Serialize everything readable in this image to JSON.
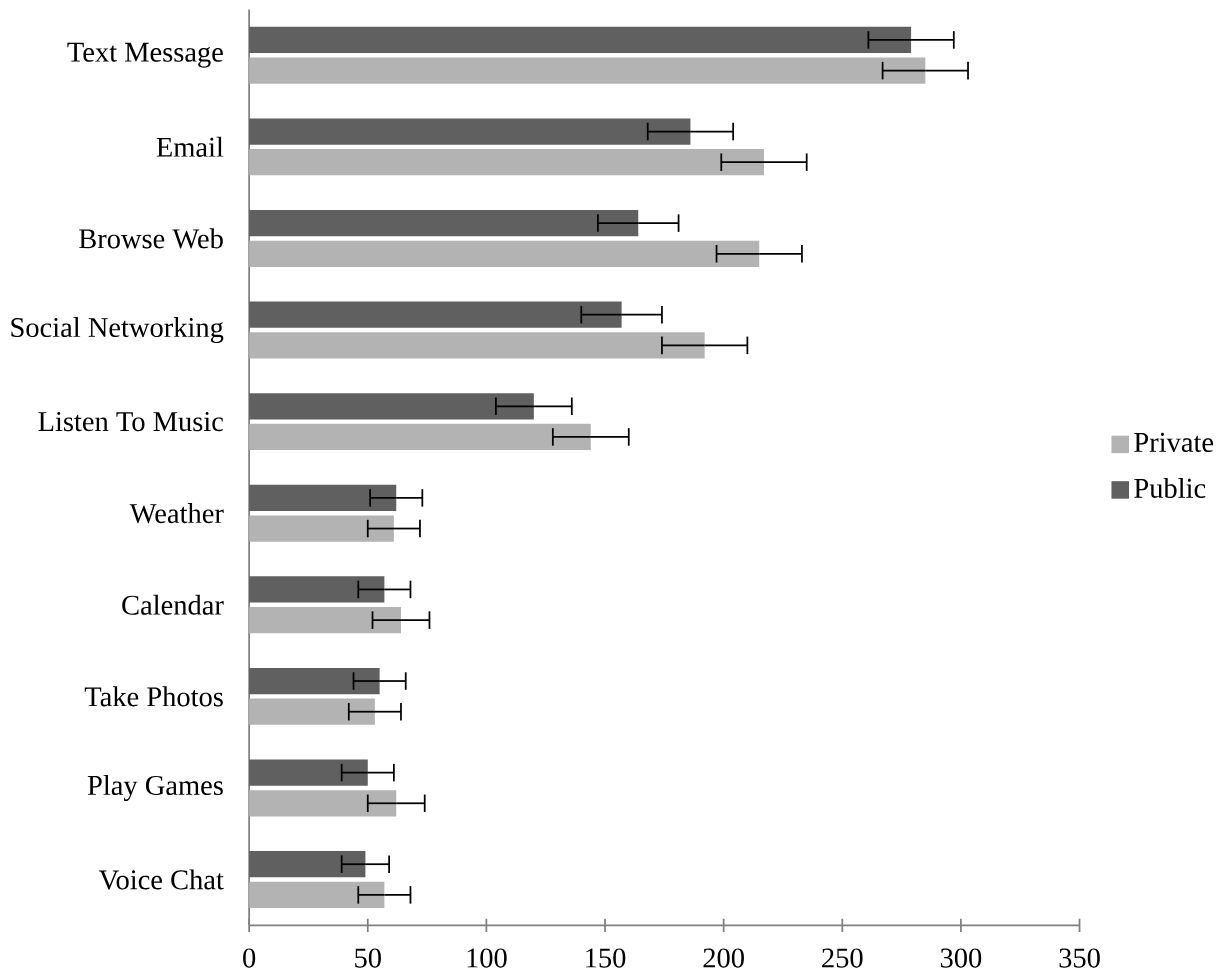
{
  "chart_data": {
    "type": "bar",
    "orientation": "horizontal",
    "categories": [
      "Text Message",
      "Email",
      "Browse Web",
      "Social Networking",
      "Listen To Music",
      "Weather",
      "Calendar",
      "Take Photos",
      "Play Games",
      "Voice Chat"
    ],
    "series": [
      {
        "name": "Private",
        "color": "#b3b3b3",
        "values": [
          285,
          217,
          215,
          192,
          144,
          61,
          64,
          53,
          62,
          57
        ],
        "errors": [
          18,
          18,
          18,
          18,
          16,
          11,
          12,
          11,
          12,
          11
        ]
      },
      {
        "name": "Public",
        "color": "#606060",
        "values": [
          279,
          186,
          164,
          157,
          120,
          62,
          57,
          55,
          50,
          49
        ],
        "errors": [
          18,
          18,
          17,
          17,
          16,
          11,
          11,
          11,
          11,
          10
        ]
      }
    ],
    "xlim": [
      0,
      350
    ],
    "xticks": [
      0,
      50,
      100,
      150,
      200,
      250,
      300,
      350
    ],
    "legend": "right",
    "grid": false
  }
}
